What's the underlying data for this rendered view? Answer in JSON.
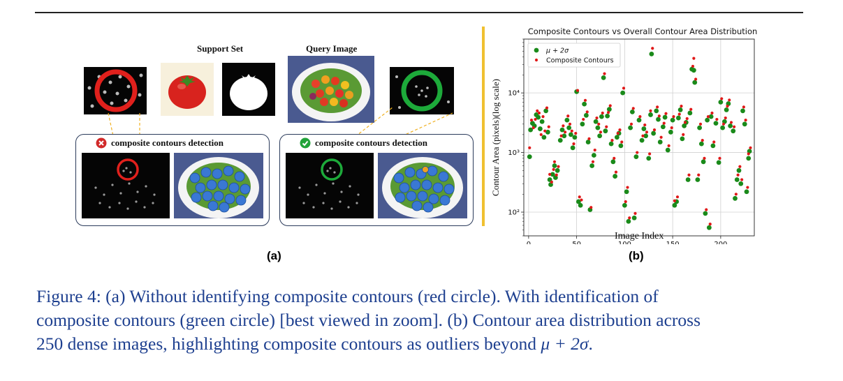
{
  "figure": {
    "panel_a": {
      "support_set_label": "Support Set",
      "query_image_label": "Query Image",
      "left_box_title": "composite contours detection",
      "right_box_title": "composite contours detection",
      "left_status_icon": "x-circle-icon",
      "right_status_icon": "check-circle-icon",
      "label": "(a)",
      "colors": {
        "red_circle": "#e0201c",
        "green_circle": "#1daa3a",
        "dot_blue": "#3a78d4"
      }
    },
    "panel_b": {
      "label": "(b)"
    },
    "caption": {
      "line1": "Figure 4:  (a) Without identifying composite contours (red circle).  With identification of",
      "line2": "composite contours (green circle) [best viewed in zoom]. (b) Contour area distribution across",
      "line3_prefix": "250 dense images, highlighting composite contours as outliers beyond ",
      "line3_math": "μ + 2σ",
      "line3_suffix": "."
    }
  },
  "chart_data": {
    "type": "scatter",
    "title": "Composite Contours vs Overall Contour Area Distribution",
    "xlabel": "Image Index",
    "ylabel": "Contour Area (pixels)(log scale)",
    "xlim": [
      -5,
      235
    ],
    "ylim": [
      40,
      80000
    ],
    "yscale": "log",
    "xticks": [
      0,
      50,
      100,
      150,
      200
    ],
    "yticks": [
      100,
      1000,
      10000
    ],
    "ytick_labels": [
      "10²",
      "10³",
      "10⁴"
    ],
    "grid": true,
    "legend_position": "top-left",
    "series": [
      {
        "name": "μ + 2σ",
        "color": "#1a8a1a",
        "marker_size": "large",
        "points": [
          [
            1,
            850
          ],
          [
            2,
            2400
          ],
          [
            4,
            3100
          ],
          [
            6,
            2800
          ],
          [
            8,
            4300
          ],
          [
            10,
            3900
          ],
          [
            12,
            2500
          ],
          [
            14,
            3300
          ],
          [
            16,
            1800
          ],
          [
            18,
            5000
          ],
          [
            20,
            2200
          ],
          [
            22,
            350
          ],
          [
            23,
            290
          ],
          [
            25,
            430
          ],
          [
            27,
            600
          ],
          [
            28,
            380
          ],
          [
            30,
            500
          ],
          [
            33,
            1600
          ],
          [
            35,
            2400
          ],
          [
            37,
            1900
          ],
          [
            40,
            3500
          ],
          [
            42,
            2600
          ],
          [
            44,
            2000
          ],
          [
            46,
            1200
          ],
          [
            48,
            1800
          ],
          [
            50,
            10500
          ],
          [
            52,
            150
          ],
          [
            54,
            130
          ],
          [
            56,
            3000
          ],
          [
            58,
            6500
          ],
          [
            60,
            4200
          ],
          [
            62,
            1500
          ],
          [
            64,
            110
          ],
          [
            66,
            600
          ],
          [
            68,
            900
          ],
          [
            70,
            3300
          ],
          [
            72,
            2600
          ],
          [
            74,
            1900
          ],
          [
            76,
            4000
          ],
          [
            78,
            18000
          ],
          [
            80,
            2300
          ],
          [
            82,
            4100
          ],
          [
            84,
            5300
          ],
          [
            86,
            1400
          ],
          [
            88,
            700
          ],
          [
            90,
            400
          ],
          [
            92,
            1800
          ],
          [
            94,
            2100
          ],
          [
            96,
            1300
          ],
          [
            98,
            10000
          ],
          [
            100,
            130
          ],
          [
            102,
            220
          ],
          [
            104,
            70
          ],
          [
            106,
            2600
          ],
          [
            108,
            4800
          ],
          [
            110,
            80
          ],
          [
            112,
            850
          ],
          [
            115,
            3500
          ],
          [
            118,
            1600
          ],
          [
            120,
            2500
          ],
          [
            122,
            1900
          ],
          [
            125,
            800
          ],
          [
            127,
            4300
          ],
          [
            128,
            45000
          ],
          [
            130,
            2100
          ],
          [
            133,
            5000
          ],
          [
            135,
            3600
          ],
          [
            137,
            1500
          ],
          [
            140,
            2700
          ],
          [
            142,
            3900
          ],
          [
            145,
            1100
          ],
          [
            148,
            2200
          ],
          [
            150,
            3500
          ],
          [
            152,
            130
          ],
          [
            154,
            150
          ],
          [
            156,
            3800
          ],
          [
            158,
            5200
          ],
          [
            160,
            1700
          ],
          [
            162,
            2800
          ],
          [
            164,
            3200
          ],
          [
            166,
            350
          ],
          [
            168,
            4600
          ],
          [
            170,
            25000
          ],
          [
            172,
            24000
          ],
          [
            173,
            15000
          ],
          [
            176,
            350
          ],
          [
            178,
            2600
          ],
          [
            180,
            1400
          ],
          [
            182,
            700
          ],
          [
            184,
            95
          ],
          [
            186,
            3500
          ],
          [
            188,
            55
          ],
          [
            190,
            4000
          ],
          [
            192,
            1300
          ],
          [
            195,
            3100
          ],
          [
            198,
            680
          ],
          [
            200,
            7000
          ],
          [
            202,
            2600
          ],
          [
            204,
            3300
          ],
          [
            206,
            5200
          ],
          [
            208,
            6600
          ],
          [
            210,
            2800
          ],
          [
            213,
            2300
          ],
          [
            215,
            170
          ],
          [
            217,
            350
          ],
          [
            219,
            500
          ],
          [
            221,
            300
          ],
          [
            223,
            5000
          ],
          [
            225,
            3000
          ],
          [
            227,
            220
          ],
          [
            229,
            800
          ],
          [
            230,
            1050
          ]
        ]
      },
      {
        "name": "Composite Contours",
        "color": "#e01818",
        "marker_size": "small",
        "points": [
          [
            1,
            1200
          ],
          [
            3,
            3500
          ],
          [
            5,
            2600
          ],
          [
            7,
            3600
          ],
          [
            9,
            5000
          ],
          [
            11,
            4600
          ],
          [
            13,
            2000
          ],
          [
            15,
            4000
          ],
          [
            17,
            2300
          ],
          [
            19,
            5600
          ],
          [
            21,
            2700
          ],
          [
            22,
            430
          ],
          [
            24,
            320
          ],
          [
            26,
            520
          ],
          [
            27,
            700
          ],
          [
            29,
            420
          ],
          [
            31,
            580
          ],
          [
            34,
            1900
          ],
          [
            36,
            2800
          ],
          [
            38,
            2200
          ],
          [
            41,
            4100
          ],
          [
            43,
            3000
          ],
          [
            45,
            2300
          ],
          [
            47,
            1400
          ],
          [
            49,
            2100
          ],
          [
            51,
            11000
          ],
          [
            53,
            180
          ],
          [
            55,
            160
          ],
          [
            57,
            3600
          ],
          [
            59,
            7500
          ],
          [
            61,
            4800
          ],
          [
            63,
            1700
          ],
          [
            65,
            120
          ],
          [
            67,
            700
          ],
          [
            69,
            1100
          ],
          [
            71,
            3800
          ],
          [
            73,
            3000
          ],
          [
            75,
            2200
          ],
          [
            77,
            4600
          ],
          [
            79,
            21000
          ],
          [
            81,
            2700
          ],
          [
            83,
            4700
          ],
          [
            85,
            6100
          ],
          [
            87,
            1600
          ],
          [
            89,
            800
          ],
          [
            91,
            470
          ],
          [
            93,
            2100
          ],
          [
            95,
            2400
          ],
          [
            97,
            1500
          ],
          [
            99,
            12000
          ],
          [
            101,
            150
          ],
          [
            103,
            260
          ],
          [
            105,
            80
          ],
          [
            107,
            3000
          ],
          [
            109,
            5500
          ],
          [
            111,
            95
          ],
          [
            113,
            1000
          ],
          [
            116,
            4000
          ],
          [
            119,
            1900
          ],
          [
            121,
            2900
          ],
          [
            123,
            2200
          ],
          [
            126,
            950
          ],
          [
            127,
            5000
          ],
          [
            129,
            56000
          ],
          [
            131,
            2400
          ],
          [
            134,
            5800
          ],
          [
            136,
            4100
          ],
          [
            138,
            1800
          ],
          [
            141,
            3100
          ],
          [
            143,
            4500
          ],
          [
            146,
            1300
          ],
          [
            149,
            2600
          ],
          [
            151,
            4000
          ],
          [
            152,
            155
          ],
          [
            155,
            180
          ],
          [
            157,
            4400
          ],
          [
            159,
            6000
          ],
          [
            161,
            2000
          ],
          [
            163,
            3200
          ],
          [
            165,
            3700
          ],
          [
            167,
            420
          ],
          [
            169,
            5300
          ],
          [
            171,
            28000
          ],
          [
            172,
            38000
          ],
          [
            174,
            17000
          ],
          [
            177,
            420
          ],
          [
            179,
            3000
          ],
          [
            181,
            1600
          ],
          [
            183,
            800
          ],
          [
            185,
            110
          ],
          [
            187,
            4000
          ],
          [
            189,
            63
          ],
          [
            191,
            4600
          ],
          [
            193,
            1500
          ],
          [
            196,
            3600
          ],
          [
            199,
            800
          ],
          [
            201,
            8000
          ],
          [
            203,
            3000
          ],
          [
            205,
            3800
          ],
          [
            207,
            6000
          ],
          [
            209,
            7600
          ],
          [
            211,
            3200
          ],
          [
            214,
            2700
          ],
          [
            216,
            200
          ],
          [
            218,
            420
          ],
          [
            220,
            580
          ],
          [
            222,
            350
          ],
          [
            224,
            5800
          ],
          [
            226,
            3500
          ],
          [
            228,
            260
          ],
          [
            229,
            950
          ],
          [
            231,
            1200
          ]
        ]
      }
    ]
  }
}
